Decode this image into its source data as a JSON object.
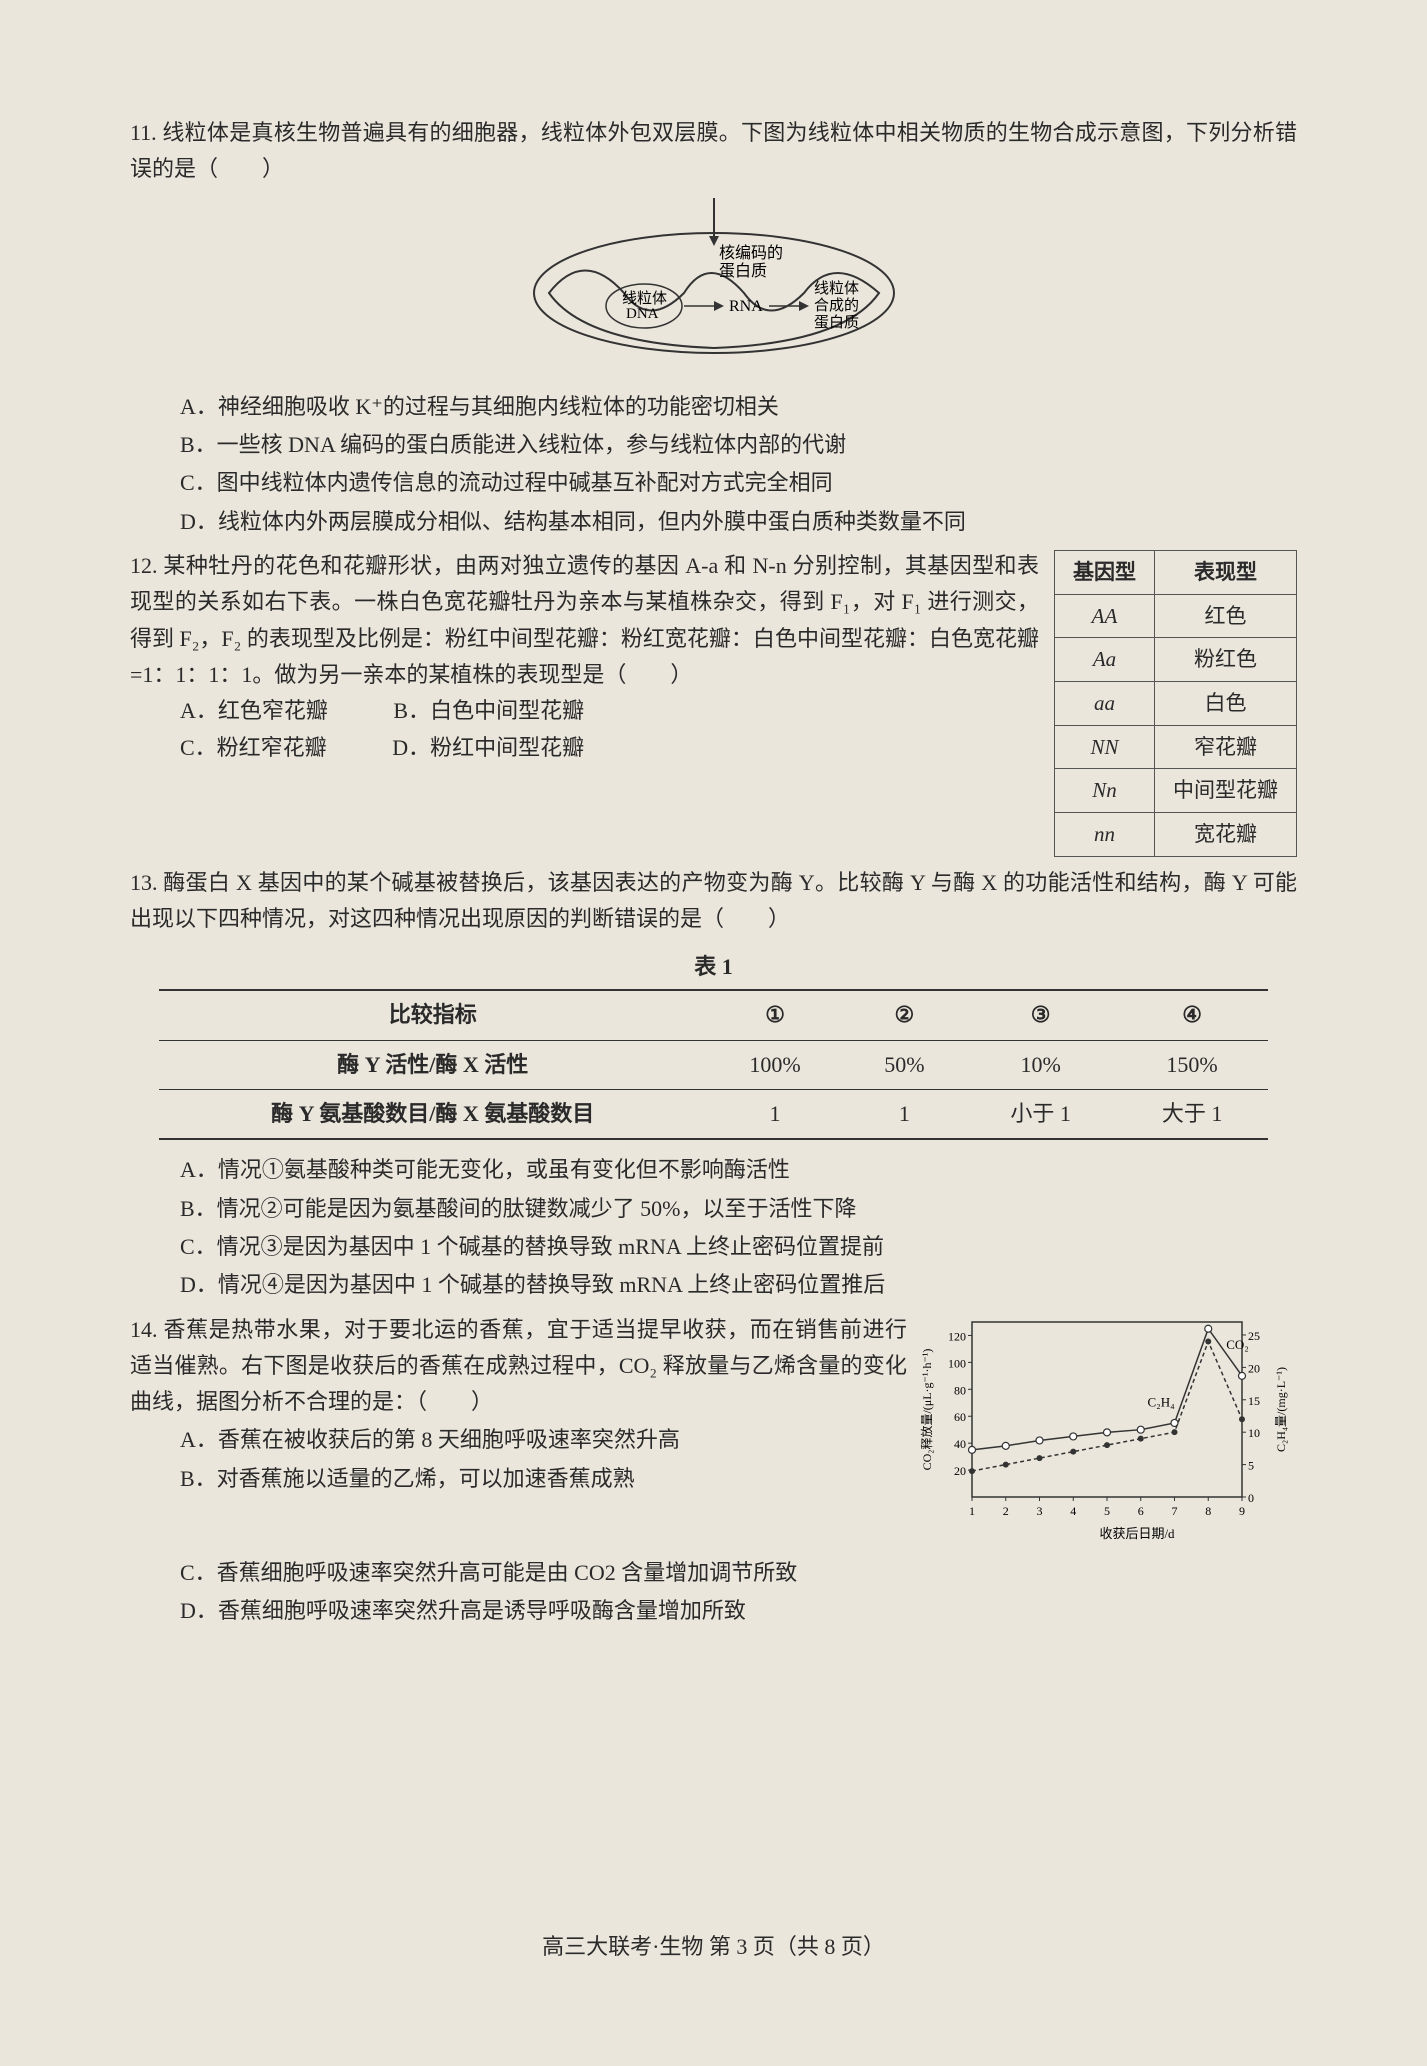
{
  "q11": {
    "text": "11. 线粒体是真核生物普遍具有的细胞器，线粒体外包双层膜。下图为线粒体中相关物质的生物合成示意图，下列分析错误的是（　　）",
    "diagram": {
      "label_nucleus_encoded": "核编码的\n蛋白质",
      "label_mito_dna": "线粒体\nDNA",
      "label_rna": "RNA",
      "label_mito_protein": "线粒体\n合成的\n蛋白质"
    },
    "options": {
      "A": "A．神经细胞吸收 K⁺的过程与其细胞内线粒体的功能密切相关",
      "B": "B．一些核 DNA 编码的蛋白质能进入线粒体，参与线粒体内部的代谢",
      "C": "C．图中线粒体内遗传信息的流动过程中碱基互补配对方式完全相同",
      "D": "D．线粒体内外两层膜成分相似、结构基本相同，但内外膜中蛋白质种类数量不同"
    }
  },
  "q12": {
    "text": "12. 某种牡丹的花色和花瓣形状，由两对独立遗传的基因 A-a 和 N-n 分别控制，其基因型和表现型的关系如右下表。一株白色宽花瓣牡丹为亲本与某植株杂交，得到 F₁，对 F₁ 进行测交，得到 F₂，F₂ 的表现型及比例是：粉红中间型花瓣：粉红宽花瓣：白色中间型花瓣：白色宽花瓣=1：1：1：1。做为另一亲本的某植株的表现型是（　　）",
    "options": {
      "A": "A．红色窄花瓣",
      "B": "B．白色中间型花瓣",
      "C": "C．粉红窄花瓣",
      "D": "D．粉红中间型花瓣"
    },
    "table": {
      "header_geno": "基因型",
      "header_pheno": "表现型",
      "rows": [
        {
          "geno": "AA",
          "pheno": "红色"
        },
        {
          "geno": "Aa",
          "pheno": "粉红色"
        },
        {
          "geno": "aa",
          "pheno": "白色"
        },
        {
          "geno": "NN",
          "pheno": "窄花瓣"
        },
        {
          "geno": "Nn",
          "pheno": "中间型花瓣"
        },
        {
          "geno": "nn",
          "pheno": "宽花瓣"
        }
      ]
    }
  },
  "q13": {
    "text": "13. 酶蛋白 X 基因中的某个碱基被替换后，该基因表达的产物变为酶 Y。比较酶 Y 与酶 X 的功能活性和结构，酶 Y 可能出现以下四种情况，对这四种情况出现原因的判断错误的是（　　）",
    "table_title": "表 1",
    "table": {
      "col0": "比较指标",
      "cols": [
        "①",
        "②",
        "③",
        "④"
      ],
      "row1_label": "酶 Y 活性/酶 X 活性",
      "row1_vals": [
        "100%",
        "50%",
        "10%",
        "150%"
      ],
      "row2_label": "酶 Y 氨基酸数目/酶 X 氨基酸数目",
      "row2_vals": [
        "1",
        "1",
        "小于 1",
        "大于 1"
      ]
    },
    "options": {
      "A": "A．情况①氨基酸种类可能无变化，或虽有变化但不影响酶活性",
      "B": "B．情况②可能是因为氨基酸间的肽键数减少了 50%，以至于活性下降",
      "C": "C．情况③是因为基因中 1 个碱基的替换导致 mRNA 上终止密码位置提前",
      "D": "D．情况④是因为基因中 1 个碱基的替换导致 mRNA 上终止密码位置推后"
    }
  },
  "q14": {
    "text": "14. 香蕉是热带水果，对于要北运的香蕉，宜于适当提早收获，而在销售前进行适当催熟。右下图是收获后的香蕉在成熟过程中，CO₂ 释放量与乙烯含量的变化曲线，据图分析不合理的是：（　　）",
    "options": {
      "A": "A．香蕉在被收获后的第 8 天细胞呼吸速率突然升高",
      "B": "B．对香蕉施以适量的乙烯，可以加速香蕉成熟",
      "C": "C．香蕉细胞呼吸速率突然升高可能是由 CO2 含量增加调节所致",
      "D": "D．香蕉细胞呼吸速率突然升高是诱导呼吸酶含量增加所致"
    },
    "chart": {
      "y_left_label": "CO₂释放量/(μL·g⁻¹·h⁻¹)",
      "y_right_label": "C₂H₄量/(mg·L⁻¹)",
      "x_label": "收获后日期/d",
      "y_left_ticks": [
        20,
        40,
        60,
        80,
        100,
        120
      ],
      "y_right_ticks": [
        0,
        5,
        10,
        15,
        20,
        25
      ],
      "x_ticks": [
        1,
        2,
        3,
        4,
        5,
        6,
        7,
        8,
        9
      ],
      "co2_label": "CO₂",
      "c2h4_label": "C₂H₄",
      "co2_series": [
        35,
        38,
        42,
        45,
        48,
        50,
        55,
        125,
        90
      ],
      "c2h4_series": [
        4,
        5,
        6,
        7,
        8,
        9,
        10,
        24,
        12
      ]
    }
  },
  "footer": "高三大联考·生物 第 3 页（共 8 页）"
}
